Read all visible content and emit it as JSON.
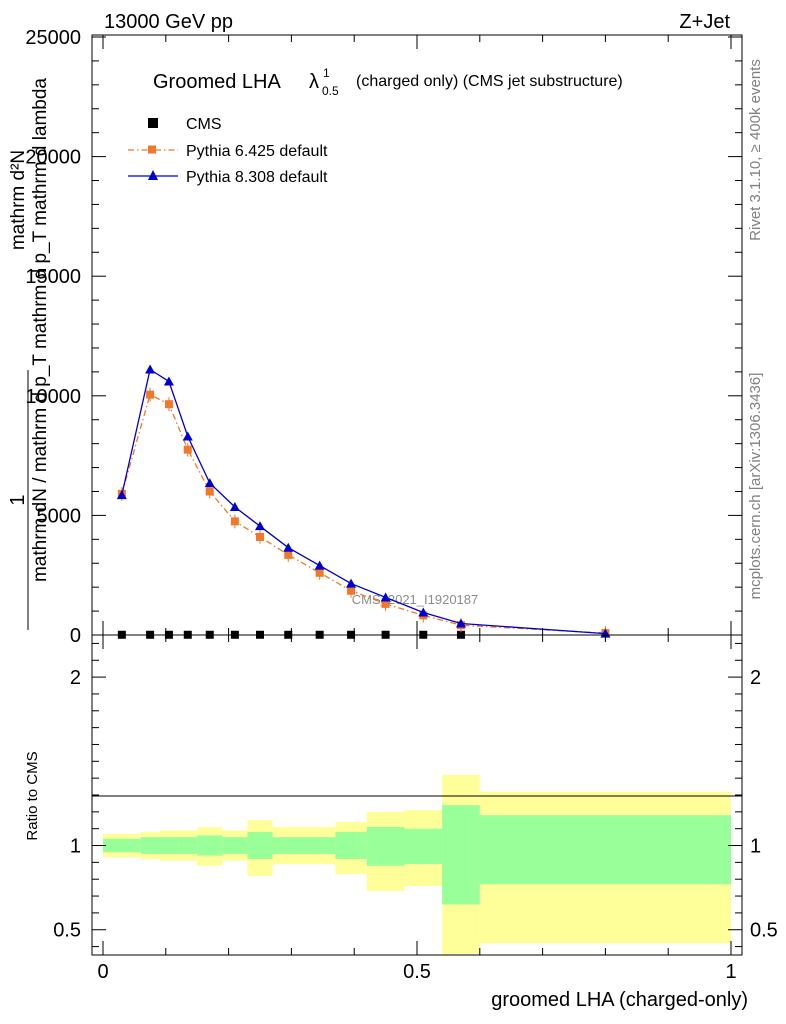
{
  "header": {
    "energy": "13000 GeV pp",
    "process": "Z+Jet"
  },
  "side": {
    "rivet": "Rivet 3.1.10, ≥ 400k events",
    "mcplots": "mcplots.cern.ch [arXiv:1306.3436]"
  },
  "chart_data": [
    {
      "type": "line",
      "title": "Groomed LHA",
      "title_lambda": "λ",
      "title_sup": "1",
      "title_sub": "0.5",
      "title_suffix": "(charged only) (CMS jet substructure)",
      "analysis_label": "CMS_2021_I1920187",
      "ylabel_frac_num": "1",
      "ylabel_num": "mathrm d²N",
      "ylabel_den": "mathrm dN / mathrm d p_T mathrm d p_T mathrm d lambda",
      "xlim": [
        0,
        1
      ],
      "ylim": [
        0,
        25000
      ],
      "yticks": [
        {
          "value": 0,
          "label": "0"
        },
        {
          "value": 5000,
          "label": "5000"
        },
        {
          "value": 10000,
          "label": "10000"
        },
        {
          "value": 15000,
          "label": "15000"
        },
        {
          "value": 20000,
          "label": "20000"
        },
        {
          "value": 25000,
          "label": "25000"
        }
      ],
      "legend": [
        "CMS",
        "Pythia 6.425 default",
        "Pythia 8.308 default"
      ],
      "series": [
        {
          "name": "CMS",
          "color": "#000000",
          "marker": "square",
          "x": [
            0.03,
            0.075,
            0.105,
            0.135,
            0.17,
            0.21,
            0.25,
            0.295,
            0.345,
            0.395,
            0.45,
            0.51,
            0.57
          ],
          "y": [
            10,
            10,
            10,
            10,
            10,
            10,
            10,
            10,
            10,
            10,
            10,
            10,
            10
          ]
        },
        {
          "name": "Pythia 6.425 default",
          "color": "#f0782a",
          "marker": "square",
          "line": "dashdot",
          "x": [
            0.03,
            0.075,
            0.105,
            0.135,
            0.17,
            0.21,
            0.25,
            0.295,
            0.345,
            0.395,
            0.45,
            0.51,
            0.57,
            0.8
          ],
          "y": [
            5900,
            10050,
            9650,
            7750,
            6000,
            4750,
            4100,
            3350,
            2600,
            1850,
            1300,
            820,
            410,
            80
          ]
        },
        {
          "name": "Pythia 8.308 default",
          "color": "#0000cc",
          "marker": "triangle",
          "line": "solid",
          "x": [
            0.03,
            0.075,
            0.105,
            0.135,
            0.17,
            0.21,
            0.25,
            0.295,
            0.345,
            0.395,
            0.45,
            0.51,
            0.57,
            0.8
          ],
          "y": [
            5850,
            11100,
            10600,
            8300,
            6350,
            5350,
            4550,
            3650,
            2900,
            2150,
            1570,
            940,
            480,
            60
          ]
        }
      ]
    },
    {
      "type": "area",
      "ylabel": "Ratio to CMS",
      "xlabel": "groomed LHA (charged-only)",
      "xlim": [
        0,
        1
      ],
      "ylim": [
        0.35,
        2.25
      ],
      "xticks": [
        {
          "value": 0,
          "label": "0"
        },
        {
          "value": 0.5,
          "label": "0.5"
        },
        {
          "value": 1,
          "label": "1"
        }
      ],
      "yticks": [
        {
          "value": 0.5,
          "label": "0.5"
        },
        {
          "value": 1,
          "label": "1"
        },
        {
          "value": 2,
          "label": "2"
        }
      ],
      "bins": [
        {
          "lo": 0.0,
          "hi": 0.06,
          "stat": [
            0.96,
            1.04
          ],
          "total": [
            0.93,
            1.07
          ]
        },
        {
          "lo": 0.06,
          "hi": 0.09,
          "stat": [
            0.95,
            1.05
          ],
          "total": [
            0.92,
            1.08
          ]
        },
        {
          "lo": 0.09,
          "hi": 0.12,
          "stat": [
            0.95,
            1.05
          ],
          "total": [
            0.91,
            1.09
          ]
        },
        {
          "lo": 0.12,
          "hi": 0.15,
          "stat": [
            0.95,
            1.05
          ],
          "total": [
            0.91,
            1.09
          ]
        },
        {
          "lo": 0.15,
          "hi": 0.19,
          "stat": [
            0.94,
            1.06
          ],
          "total": [
            0.88,
            1.11
          ]
        },
        {
          "lo": 0.19,
          "hi": 0.23,
          "stat": [
            0.95,
            1.05
          ],
          "total": [
            0.91,
            1.09
          ]
        },
        {
          "lo": 0.23,
          "hi": 0.27,
          "stat": [
            0.92,
            1.08
          ],
          "total": [
            0.82,
            1.15
          ]
        },
        {
          "lo": 0.27,
          "hi": 0.32,
          "stat": [
            0.95,
            1.05
          ],
          "total": [
            0.89,
            1.11
          ]
        },
        {
          "lo": 0.32,
          "hi": 0.37,
          "stat": [
            0.95,
            1.05
          ],
          "total": [
            0.89,
            1.11
          ]
        },
        {
          "lo": 0.37,
          "hi": 0.42,
          "stat": [
            0.92,
            1.08
          ],
          "total": [
            0.83,
            1.14
          ]
        },
        {
          "lo": 0.42,
          "hi": 0.48,
          "stat": [
            0.88,
            1.11
          ],
          "total": [
            0.73,
            1.2
          ]
        },
        {
          "lo": 0.48,
          "hi": 0.54,
          "stat": [
            0.89,
            1.1
          ],
          "total": [
            0.76,
            1.21
          ]
        },
        {
          "lo": 0.54,
          "hi": 0.6,
          "stat": [
            0.65,
            1.24
          ],
          "total": [
            0.34,
            1.42
          ]
        },
        {
          "lo": 0.6,
          "hi": 1.0,
          "stat": [
            0.77,
            1.18
          ],
          "total": [
            0.42,
            1.32
          ]
        }
      ]
    }
  ]
}
